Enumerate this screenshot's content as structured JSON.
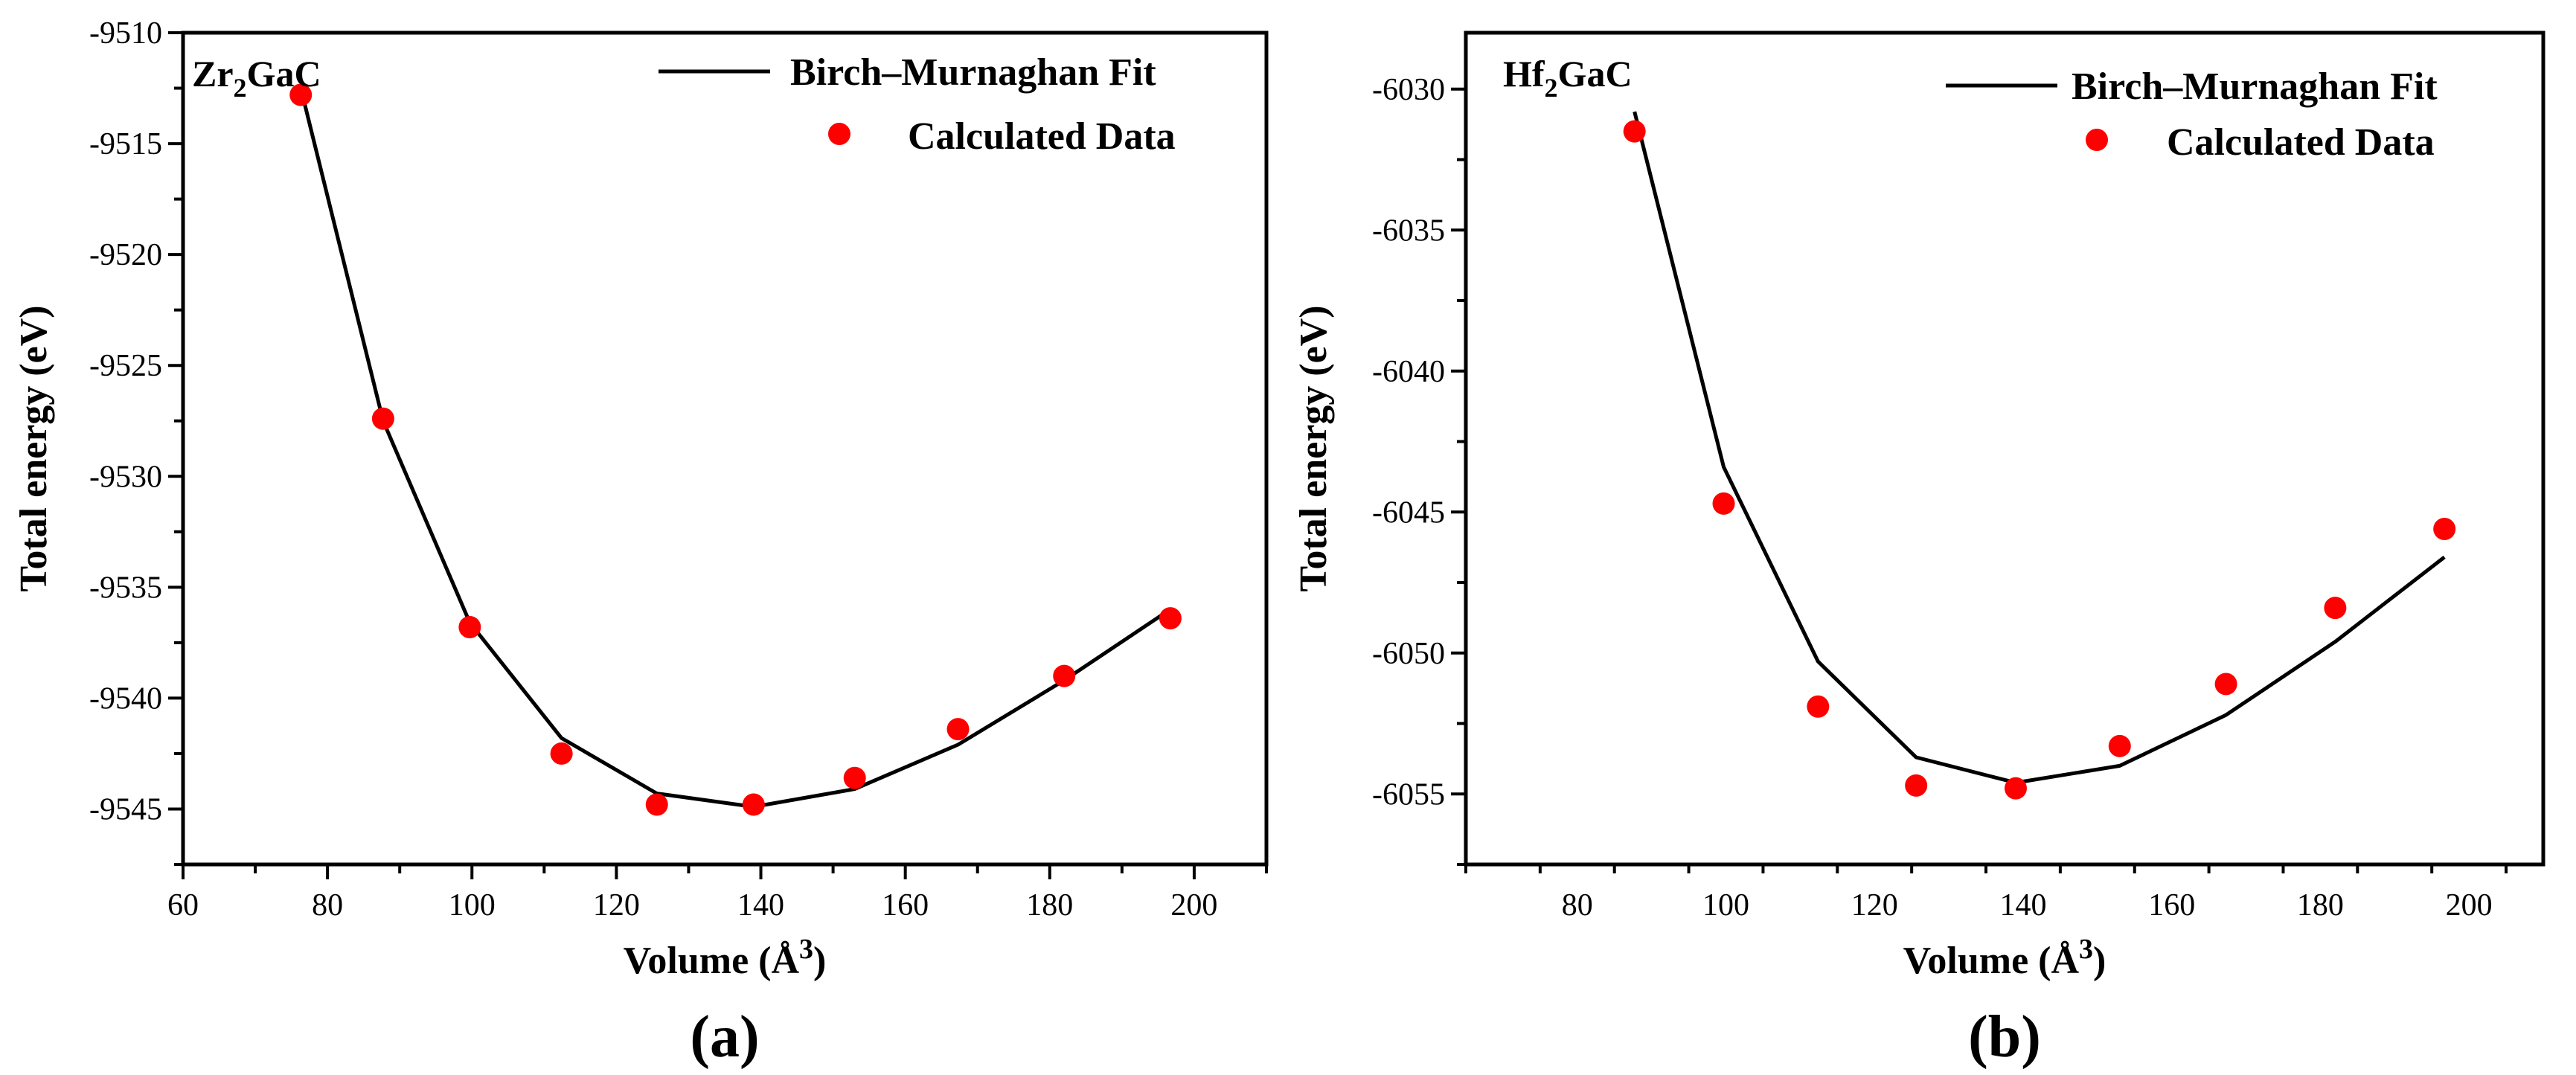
{
  "chart_data": [
    {
      "type": "scatter",
      "title": "",
      "compound": {
        "base1": "Zr",
        "sub": "2",
        "base2": "GaC"
      },
      "panel_label": "(a)",
      "xlabel": {
        "main": "Volume (Å",
        "sup": "3",
        "close": ")"
      },
      "ylabel": "Total energy (eV)",
      "xlim": [
        60,
        210
      ],
      "ylim": [
        -9547.5,
        -9510
      ],
      "x_ticks": [
        60,
        80,
        100,
        120,
        140,
        160,
        180,
        200
      ],
      "x_tick_labels": [
        "60",
        "80",
        "100",
        "120",
        "140",
        "160",
        "180",
        "200"
      ],
      "y_ticks": [
        -9510,
        -9515,
        -9520,
        -9525,
        -9530,
        -9535,
        -9540,
        -9545
      ],
      "y_tick_labels": [
        "-9510",
        "-9515",
        "-9520",
        "-9525",
        "-9530",
        "-9535",
        "-9540",
        "-9545"
      ],
      "legend": {
        "fit": "Birch–Murnaghan Fit",
        "data": "Calculated Data",
        "position": "top-right"
      },
      "series": [
        {
          "name": "Birch–Murnaghan Fit",
          "kind": "line",
          "color": "#000000",
          "x": [
            76.3,
            87.7,
            99.7,
            112.4,
            125.6,
            139.0,
            153.0,
            167.3,
            182.0,
            196.7
          ],
          "y": [
            -9512.5,
            -9527.5,
            -9536.6,
            -9541.8,
            -9544.3,
            -9544.9,
            -9544.1,
            -9542.1,
            -9539.2,
            -9536.0
          ]
        },
        {
          "name": "Calculated Data",
          "kind": "scatter",
          "color": "#ff0000",
          "x": [
            76.3,
            87.7,
            99.7,
            112.4,
            125.6,
            139.0,
            153.0,
            167.3,
            182.0,
            196.7
          ],
          "y": [
            -9512.8,
            -9527.4,
            -9536.8,
            -9542.5,
            -9544.8,
            -9544.8,
            -9543.6,
            -9541.4,
            -9539.0,
            -9536.4
          ]
        }
      ]
    },
    {
      "type": "scatter",
      "title": "",
      "compound": {
        "base1": "Hf",
        "sub": "2",
        "base2": "GaC"
      },
      "panel_label": "(b)",
      "xlabel": {
        "main": "Volume (Å",
        "sup": "3",
        "close": ")"
      },
      "ylabel": "Total energy (eV)",
      "xlim": [
        65,
        210
      ],
      "ylim": [
        -6057.5,
        -6028
      ],
      "x_ticks": [
        80,
        100,
        120,
        140,
        160,
        180,
        200
      ],
      "x_tick_labels": [
        "80",
        "100",
        "120",
        "140",
        "160",
        "180",
        "200"
      ],
      "y_ticks": [
        -6030,
        -6035,
        -6040,
        -6045,
        -6050,
        -6055
      ],
      "y_tick_labels": [
        "-6030",
        "-6035",
        "-6040",
        "-6045",
        "-6050",
        "-6055"
      ],
      "legend": {
        "fit": "Birch–Murnaghan Fit",
        "data": "Calculated Data",
        "position": "top-right"
      },
      "series": [
        {
          "name": "Birch–Murnaghan Fit",
          "kind": "line",
          "color": "#000000",
          "x": [
            87.7,
            99.7,
            112.4,
            125.6,
            139.0,
            153.0,
            167.3,
            182.0,
            196.7
          ],
          "y": [
            -6030.8,
            -6043.4,
            -6050.3,
            -6053.7,
            -6054.6,
            -6054.0,
            -6052.2,
            -6049.6,
            -6046.6
          ]
        },
        {
          "name": "Calculated Data",
          "kind": "scatter",
          "color": "#ff0000",
          "x": [
            87.7,
            99.7,
            112.4,
            125.6,
            139.0,
            153.0,
            167.3,
            182.0,
            196.7
          ],
          "y": [
            -6031.5,
            -6044.7,
            -6051.9,
            -6054.7,
            -6054.8,
            -6053.3,
            -6051.1,
            -6048.4,
            -6045.6
          ]
        }
      ]
    }
  ]
}
